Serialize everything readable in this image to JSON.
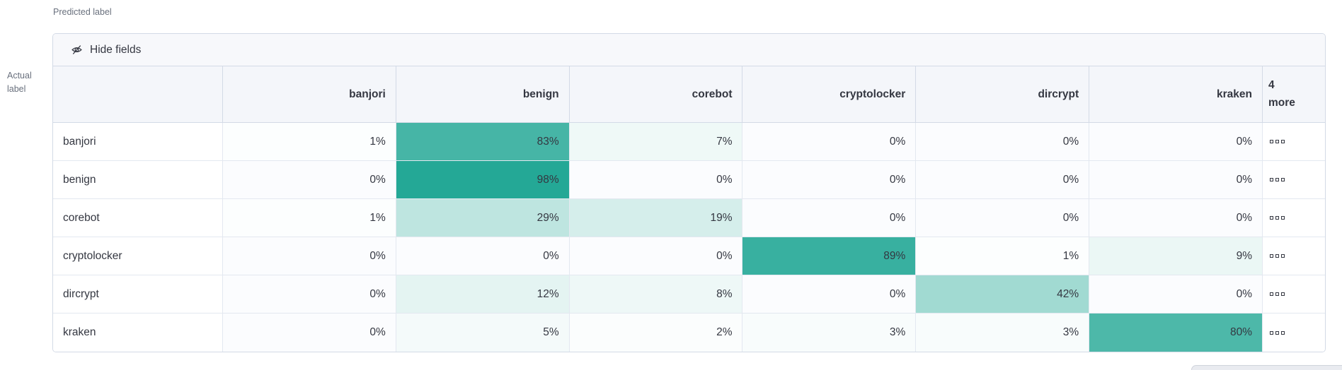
{
  "axes": {
    "predicted": "Predicted label",
    "actual": "Actual label"
  },
  "toolbar": {
    "hide_fields_label": "Hide fields"
  },
  "more_column": {
    "count": "4",
    "label": "more"
  },
  "icons": {
    "toolbar_icon": "eye-closed-icon",
    "more_cell_icon": "boxes-horizontal-icon"
  },
  "chart_data": {
    "type": "heatmap",
    "x_axis_label": "Predicted label",
    "y_axis_label": "Actual label",
    "columns": [
      "banjori",
      "benign",
      "corebot",
      "cryptolocker",
      "dircrypt",
      "kraken"
    ],
    "rows": [
      "banjori",
      "benign",
      "corebot",
      "cryptolocker",
      "dircrypt",
      "kraken"
    ],
    "values_percent": [
      [
        1,
        83,
        7,
        0,
        0,
        0
      ],
      [
        0,
        98,
        0,
        0,
        0,
        0
      ],
      [
        1,
        29,
        19,
        0,
        0,
        0
      ],
      [
        0,
        0,
        0,
        89,
        1,
        9
      ],
      [
        0,
        12,
        8,
        0,
        42,
        0
      ],
      [
        0,
        5,
        2,
        3,
        3,
        80
      ]
    ],
    "hidden_columns_count": 4,
    "value_suffix": "%",
    "legend": "none",
    "grid": "on"
  },
  "colors": {
    "heat_rgb": "32,166,148",
    "zero_cell_bg": "#fbfcfe",
    "panel_border": "#d3dae6",
    "cell_border": "#e3e8f0",
    "header_bg": "#f4f6fa",
    "toolbar_bg": "#f7f8fb",
    "text": "#343741",
    "muted_text": "#69707d",
    "scrollbar": "#e9ebf0"
  }
}
